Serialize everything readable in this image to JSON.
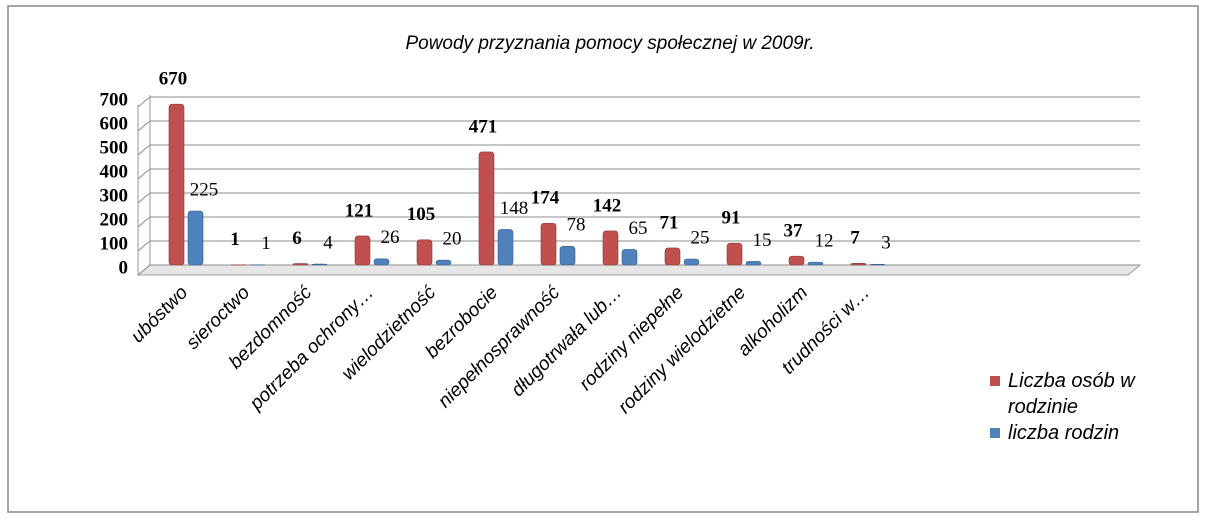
{
  "chart_data": {
    "type": "bar",
    "title": "Powody przyznania pomocy społecznej w 2009r.",
    "categories": [
      "ubóstwo",
      "sieroctwo",
      "bezdomność",
      "potrzeba ochrony…",
      "wielodzietność",
      "bezrobocie",
      "niepełnosprawność",
      "długotrwała lub…",
      "rodziny niepełne",
      "rodziny wielodzietne",
      "alkoholizm",
      "trudności w…"
    ],
    "series": [
      {
        "name": "Liczba osób w rodzinie",
        "color": "#c0504d",
        "values": [
          670,
          1,
          6,
          121,
          105,
          471,
          174,
          142,
          71,
          91,
          37,
          7
        ]
      },
      {
        "name": "liczba rodzin",
        "color": "#4f81bd",
        "values": [
          225,
          1,
          4,
          26,
          20,
          148,
          78,
          65,
          25,
          15,
          12,
          3
        ]
      }
    ],
    "ylim": [
      0,
      700
    ],
    "yticks": [
      0,
      100,
      200,
      300,
      400,
      500,
      600,
      700
    ],
    "grid": true,
    "legend": "right"
  }
}
